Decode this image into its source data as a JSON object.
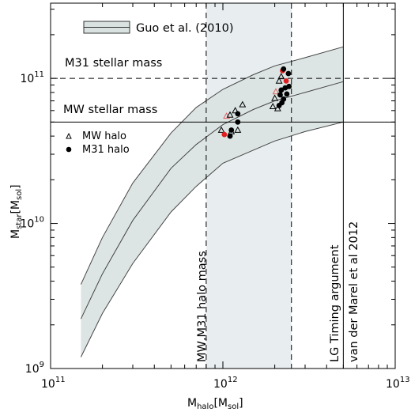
{
  "chart_data": {
    "type": "line",
    "xlabel": {
      "main": "M",
      "sub": "halo",
      "open": "[M",
      "unit_sub": "sol",
      "close": "]"
    },
    "ylabel": {
      "main": "M",
      "sub": "star",
      "open": "[M",
      "unit_sub": "sol",
      "close": "]"
    },
    "x_scale": "log",
    "y_scale": "log",
    "xlim": [
      100000000000.0,
      10000000000000.0
    ],
    "ylim": [
      1000000000.0,
      330000000000.0
    ],
    "x_ticks": [
      {
        "value": 100000000000.0,
        "base": "10",
        "exp": "11"
      },
      {
        "value": 1000000000000.0,
        "base": "10",
        "exp": "12"
      },
      {
        "value": 10000000000000.0,
        "base": "10",
        "exp": "13"
      }
    ],
    "y_ticks": [
      {
        "value": 1000000000.0,
        "base": "10",
        "exp": "9"
      },
      {
        "value": 10000000000.0,
        "base": "10",
        "exp": "10"
      },
      {
        "value": 100000000000.0,
        "base": "10",
        "exp": "11"
      }
    ],
    "legend": {
      "position": "top-left",
      "band_label": "Guo et al. (2010)",
      "mw_label": "MW halo",
      "m31_label": "M31 halo"
    },
    "band": {
      "name": "Guo et al. (2010)",
      "color": "#d9e2e1",
      "x": [
        150000000000.0,
        200000000000.0,
        300000000000.0,
        500000000000.0,
        700000000000.0,
        1000000000000.0,
        1500000000000.0,
        2000000000000.0,
        3000000000000.0,
        5000000000000.0
      ],
      "y_center": [
        2200000000.0,
        4500000000.0,
        10500000000.0,
        24000000000.0,
        35000000000.0,
        48000000000.0,
        61000000000.0,
        70000000000.0,
        80000000000.0,
        95000000000.0
      ],
      "y_low": [
        1200000000.0,
        2400000000.0,
        5300000000.0,
        12000000000.0,
        18000000000.0,
        26000000000.0,
        32000000000.0,
        37000000000.0,
        43000000000.0,
        50000000000.0
      ],
      "y_high": [
        3800000000.0,
        8000000000.0,
        19000000000.0,
        42000000000.0,
        63000000000.0,
        84000000000.0,
        106000000000.0,
        122000000000.0,
        139000000000.0,
        165000000000.0
      ]
    },
    "shaded_region": {
      "x": [
        800000000000.0,
        2500000000000.0
      ],
      "color": "#e8eef0"
    },
    "reference_lines": [
      {
        "orientation": "horizontal",
        "value": 100000000000.0,
        "style": "dashed",
        "label": "M31 stellar mass"
      },
      {
        "orientation": "horizontal",
        "value": 50000000000.0,
        "style": "solid",
        "label": "MW stellar mass"
      },
      {
        "orientation": "vertical",
        "value": 800000000000.0,
        "style": "dashed",
        "label": "MW,M31 halo mass"
      },
      {
        "orientation": "vertical",
        "value": 2500000000000.0,
        "style": "dashed",
        "label": ""
      },
      {
        "orientation": "vertical",
        "value": 5000000000000.0,
        "style": "solid",
        "label": "LG Timing argument",
        "label2": "van der Marel et al 2012"
      }
    ],
    "series": [
      {
        "name": "MW halo",
        "marker": "open-triangle",
        "points": [
          {
            "x": 980000000000.0,
            "y": 44000000000.0,
            "color": "#000000"
          },
          {
            "x": 1050000000000.0,
            "y": 55000000000.0,
            "color": "#e06060"
          },
          {
            "x": 1100000000000.0,
            "y": 56000000000.0,
            "color": "#000000"
          },
          {
            "x": 1120000000000.0,
            "y": 43000000000.0,
            "color": "#000000"
          },
          {
            "x": 1180000000000.0,
            "y": 60000000000.0,
            "color": "#000000"
          },
          {
            "x": 1220000000000.0,
            "y": 44000000000.0,
            "color": "#000000"
          },
          {
            "x": 1300000000000.0,
            "y": 66000000000.0,
            "color": "#000000"
          },
          {
            "x": 1950000000000.0,
            "y": 64000000000.0,
            "color": "#000000"
          },
          {
            "x": 2000000000000.0,
            "y": 73000000000.0,
            "color": "#000000"
          },
          {
            "x": 2030000000000.0,
            "y": 81000000000.0,
            "color": "#e06060"
          },
          {
            "x": 2080000000000.0,
            "y": 62000000000.0,
            "color": "#000000"
          },
          {
            "x": 2120000000000.0,
            "y": 96000000000.0,
            "color": "#000000"
          },
          {
            "x": 2180000000000.0,
            "y": 103000000000.0,
            "color": "#000000"
          }
        ]
      },
      {
        "name": "M31 halo",
        "marker": "filled-circle",
        "points": [
          {
            "x": 1020000000000.0,
            "y": 41000000000.0,
            "color": "#e02020"
          },
          {
            "x": 1100000000000.0,
            "y": 40000000000.0,
            "color": "#000000"
          },
          {
            "x": 1120000000000.0,
            "y": 44000000000.0,
            "color": "#000000"
          },
          {
            "x": 1220000000000.0,
            "y": 57000000000.0,
            "color": "#000000"
          },
          {
            "x": 1220000000000.0,
            "y": 50000000000.0,
            "color": "#000000"
          },
          {
            "x": 2120000000000.0,
            "y": 65000000000.0,
            "color": "#000000"
          },
          {
            "x": 2150000000000.0,
            "y": 77000000000.0,
            "color": "#000000"
          },
          {
            "x": 2180000000000.0,
            "y": 83000000000.0,
            "color": "#000000"
          },
          {
            "x": 2200000000000.0,
            "y": 68000000000.0,
            "color": "#000000"
          },
          {
            "x": 2220000000000.0,
            "y": 113000000000.0,
            "color": "#e02020"
          },
          {
            "x": 2250000000000.0,
            "y": 116000000000.0,
            "color": "#000000"
          },
          {
            "x": 2250000000000.0,
            "y": 72000000000.0,
            "color": "#000000"
          },
          {
            "x": 2300000000000.0,
            "y": 86000000000.0,
            "color": "#000000"
          },
          {
            "x": 2330000000000.0,
            "y": 96000000000.0,
            "color": "#e02020"
          },
          {
            "x": 2350000000000.0,
            "y": 78000000000.0,
            "color": "#000000"
          },
          {
            "x": 2400000000000.0,
            "y": 108000000000.0,
            "color": "#000000"
          },
          {
            "x": 2420000000000.0,
            "y": 88000000000.0,
            "color": "#000000"
          }
        ]
      }
    ]
  }
}
